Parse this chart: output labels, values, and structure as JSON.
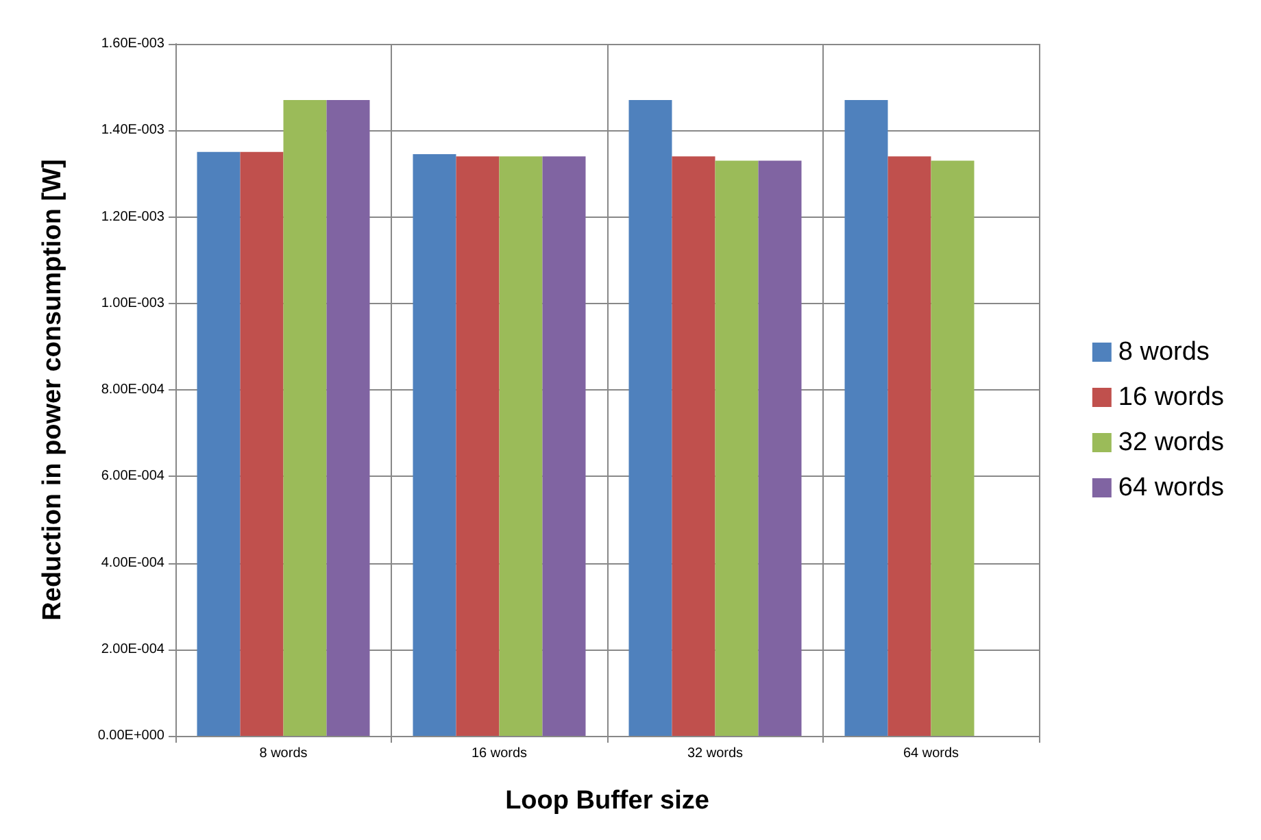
{
  "chart_data": {
    "type": "bar",
    "xlabel": "Loop Buffer size",
    "ylabel": "Reduction in power consumption [W]",
    "categories": [
      "8 words",
      "16 words",
      "32 words",
      "64 words"
    ],
    "series": [
      {
        "name": "8 words",
        "color": "#4f81bd",
        "values": [
          0.00135,
          0.001345,
          0.00147,
          0.00147
        ]
      },
      {
        "name": "16 words",
        "color": "#c0504d",
        "values": [
          0.00135,
          0.00134,
          0.00134,
          0.00134
        ]
      },
      {
        "name": "32 words",
        "color": "#9bbb59",
        "values": [
          0.00147,
          0.00134,
          0.00133,
          0.00133
        ]
      },
      {
        "name": "64 words",
        "color": "#8064a2",
        "values": [
          0.00147,
          0.00134,
          0.00133,
          null
        ]
      }
    ],
    "ylim": [
      0,
      0.0016
    ],
    "yticks": [
      {
        "value": 0,
        "label": "0.00E+000"
      },
      {
        "value": 0.0002,
        "label": "2.00E-004"
      },
      {
        "value": 0.0004,
        "label": "4.00E-004"
      },
      {
        "value": 0.0006,
        "label": "6.00E-004"
      },
      {
        "value": 0.0008,
        "label": "8.00E-004"
      },
      {
        "value": 0.001,
        "label": "1.00E-003"
      },
      {
        "value": 0.0012,
        "label": "1.20E-003"
      },
      {
        "value": 0.0014,
        "label": "1.40E-003"
      },
      {
        "value": 0.0016,
        "label": "1.60E-003"
      }
    ],
    "grid": true,
    "legend": "right"
  }
}
